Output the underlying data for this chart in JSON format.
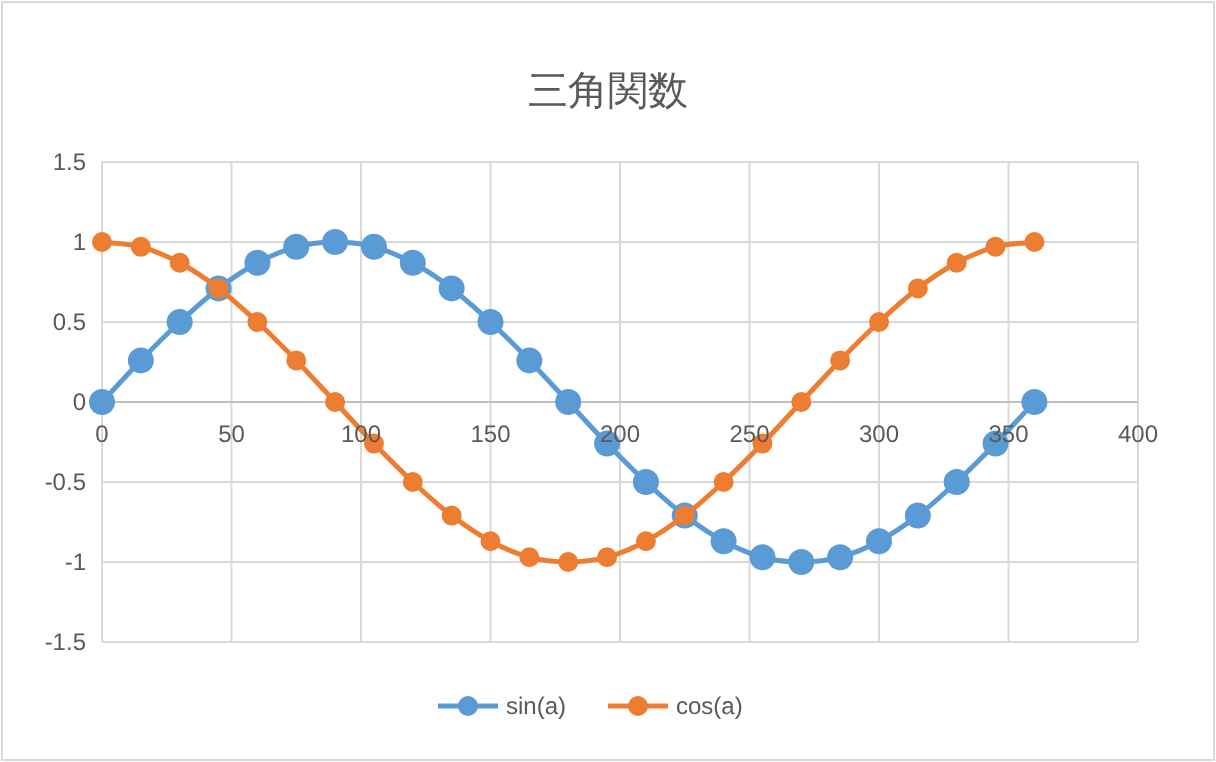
{
  "chart_data": {
    "type": "line",
    "title": "三角関数",
    "x": [
      0,
      15,
      30,
      45,
      60,
      75,
      90,
      105,
      120,
      135,
      150,
      165,
      180,
      195,
      210,
      225,
      240,
      255,
      270,
      285,
      300,
      315,
      330,
      345,
      360
    ],
    "series": [
      {
        "name": "sin(a)",
        "color": "#5b9bd5",
        "values": [
          0,
          0.26,
          0.5,
          0.71,
          0.87,
          0.97,
          1,
          0.97,
          0.87,
          0.71,
          0.5,
          0.26,
          0,
          -0.26,
          -0.5,
          -0.71,
          -0.87,
          -0.97,
          -1,
          -0.97,
          -0.87,
          -0.71,
          -0.5,
          -0.26,
          0
        ]
      },
      {
        "name": "cos(a)",
        "color": "#ed7d31",
        "values": [
          1,
          0.97,
          0.87,
          0.71,
          0.5,
          0.26,
          0,
          -0.26,
          -0.5,
          -0.71,
          -0.87,
          -0.97,
          -1,
          -0.97,
          -0.87,
          -0.71,
          -0.5,
          -0.26,
          0,
          0.26,
          0.5,
          0.71,
          0.87,
          0.97,
          1
        ]
      }
    ],
    "xlim": [
      0,
      400
    ],
    "xticks": [
      0,
      50,
      100,
      150,
      200,
      250,
      300,
      350,
      400
    ],
    "ylim": [
      -1.5,
      1.5
    ],
    "yticks": [
      -1.5,
      -1,
      -0.5,
      0,
      0.5,
      1,
      1.5
    ],
    "grid": true,
    "legend": "bottom",
    "marker": "circle",
    "line_style": "solid"
  }
}
